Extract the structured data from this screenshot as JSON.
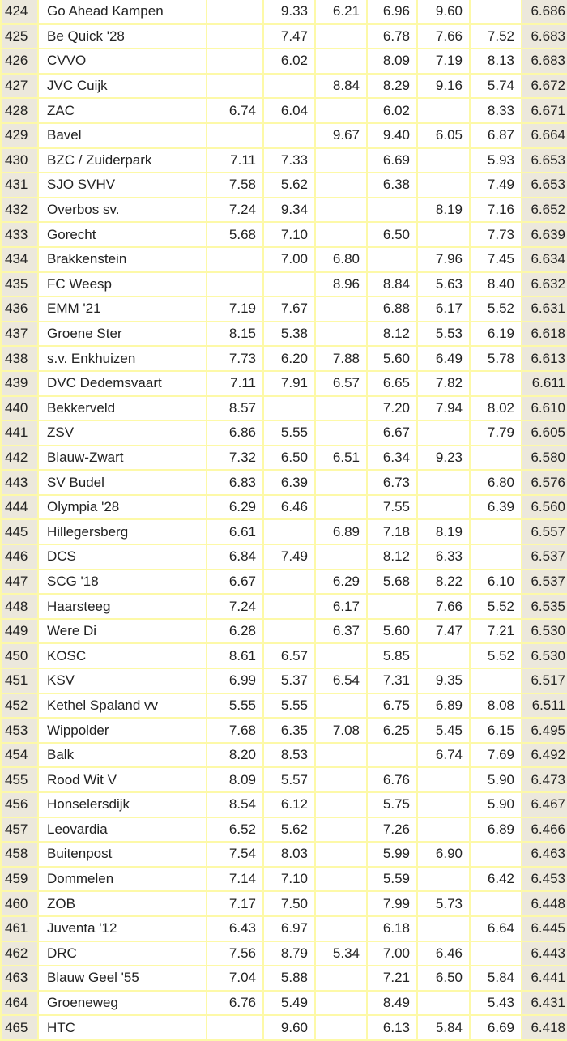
{
  "table": {
    "rows": [
      {
        "rank": "424",
        "club": "Go Ahead Kampen",
        "scores": [
          "",
          "9.33",
          "6.21",
          "6.96",
          "9.60",
          ""
        ],
        "total": "6.686"
      },
      {
        "rank": "425",
        "club": "Be Quick '28",
        "scores": [
          "",
          "7.47",
          "",
          "6.78",
          "7.66",
          "7.52"
        ],
        "total": "6.683"
      },
      {
        "rank": "426",
        "club": "CVVO",
        "scores": [
          "",
          "6.02",
          "",
          "8.09",
          "7.19",
          "8.13"
        ],
        "total": "6.683"
      },
      {
        "rank": "427",
        "club": "JVC Cuijk",
        "scores": [
          "",
          "",
          "8.84",
          "8.29",
          "9.16",
          "5.74"
        ],
        "total": "6.672"
      },
      {
        "rank": "428",
        "club": "ZAC",
        "scores": [
          "6.74",
          "6.04",
          "",
          "6.02",
          "",
          "8.33"
        ],
        "total": "6.671"
      },
      {
        "rank": "429",
        "club": "Bavel",
        "scores": [
          "",
          "",
          "9.67",
          "9.40",
          "6.05",
          "6.87"
        ],
        "total": "6.664"
      },
      {
        "rank": "430",
        "club": "BZC / Zuiderpark",
        "scores": [
          "7.11",
          "7.33",
          "",
          "6.69",
          "",
          "5.93"
        ],
        "total": "6.653"
      },
      {
        "rank": "431",
        "club": "SJO SVHV",
        "scores": [
          "7.58",
          "5.62",
          "",
          "6.38",
          "",
          "7.49"
        ],
        "total": "6.653"
      },
      {
        "rank": "432",
        "club": "Overbos sv.",
        "scores": [
          "7.24",
          "9.34",
          "",
          "",
          "8.19",
          "7.16"
        ],
        "total": "6.652"
      },
      {
        "rank": "433",
        "club": "Gorecht",
        "scores": [
          "5.68",
          "7.10",
          "",
          "6.50",
          "",
          "7.73"
        ],
        "total": "6.639"
      },
      {
        "rank": "434",
        "club": "Brakkenstein",
        "scores": [
          "",
          "7.00",
          "6.80",
          "",
          "7.96",
          "7.45"
        ],
        "total": "6.634"
      },
      {
        "rank": "435",
        "club": "FC Weesp",
        "scores": [
          "",
          "",
          "8.96",
          "8.84",
          "5.63",
          "8.40"
        ],
        "total": "6.632"
      },
      {
        "rank": "436",
        "club": "EMM '21",
        "scores": [
          "7.19",
          "7.67",
          "",
          "6.88",
          "6.17",
          "5.52"
        ],
        "total": "6.631"
      },
      {
        "rank": "437",
        "club": "Groene Ster",
        "scores": [
          "8.15",
          "5.38",
          "",
          "8.12",
          "5.53",
          "6.19"
        ],
        "total": "6.618"
      },
      {
        "rank": "438",
        "club": "s.v. Enkhuizen",
        "scores": [
          "7.73",
          "6.20",
          "7.88",
          "5.60",
          "6.49",
          "5.78"
        ],
        "total": "6.613"
      },
      {
        "rank": "439",
        "club": "DVC Dedemsvaart",
        "scores": [
          "7.11",
          "7.91",
          "6.57",
          "6.65",
          "7.82",
          ""
        ],
        "total": "6.611"
      },
      {
        "rank": "440",
        "club": "Bekkerveld",
        "scores": [
          "8.57",
          "",
          "",
          "7.20",
          "7.94",
          "8.02"
        ],
        "total": "6.610"
      },
      {
        "rank": "441",
        "club": "ZSV",
        "scores": [
          "6.86",
          "5.55",
          "",
          "6.67",
          "",
          "7.79"
        ],
        "total": "6.605"
      },
      {
        "rank": "442",
        "club": "Blauw-Zwart",
        "scores": [
          "7.32",
          "6.50",
          "6.51",
          "6.34",
          "9.23",
          ""
        ],
        "total": "6.580"
      },
      {
        "rank": "443",
        "club": "SV Budel",
        "scores": [
          "6.83",
          "6.39",
          "",
          "6.73",
          "",
          "6.80"
        ],
        "total": "6.576"
      },
      {
        "rank": "444",
        "club": "Olympia '28",
        "scores": [
          "6.29",
          "6.46",
          "",
          "7.55",
          "",
          "6.39"
        ],
        "total": "6.560"
      },
      {
        "rank": "445",
        "club": "Hillegersberg",
        "scores": [
          "6.61",
          "",
          "6.89",
          "7.18",
          "8.19",
          ""
        ],
        "total": "6.557"
      },
      {
        "rank": "446",
        "club": "DCS",
        "scores": [
          "6.84",
          "7.49",
          "",
          "8.12",
          "6.33",
          ""
        ],
        "total": "6.537"
      },
      {
        "rank": "447",
        "club": "SCG '18",
        "scores": [
          "6.67",
          "",
          "6.29",
          "5.68",
          "8.22",
          "6.10"
        ],
        "total": "6.537"
      },
      {
        "rank": "448",
        "club": "Haarsteeg",
        "scores": [
          "7.24",
          "",
          "6.17",
          "",
          "7.66",
          "5.52"
        ],
        "total": "6.535"
      },
      {
        "rank": "449",
        "club": "Were Di",
        "scores": [
          "6.28",
          "",
          "6.37",
          "5.60",
          "7.47",
          "7.21"
        ],
        "total": "6.530"
      },
      {
        "rank": "450",
        "club": "KOSC",
        "scores": [
          "8.61",
          "6.57",
          "",
          "5.85",
          "",
          "5.52"
        ],
        "total": "6.530"
      },
      {
        "rank": "451",
        "club": "KSV",
        "scores": [
          "6.99",
          "5.37",
          "6.54",
          "7.31",
          "9.35",
          ""
        ],
        "total": "6.517"
      },
      {
        "rank": "452",
        "club": "Kethel Spaland vv",
        "scores": [
          "5.55",
          "5.55",
          "",
          "6.75",
          "6.89",
          "8.08"
        ],
        "total": "6.511"
      },
      {
        "rank": "453",
        "club": "Wippolder",
        "scores": [
          "7.68",
          "6.35",
          "7.08",
          "6.25",
          "5.45",
          "6.15"
        ],
        "total": "6.495"
      },
      {
        "rank": "454",
        "club": "Balk",
        "scores": [
          "8.20",
          "8.53",
          "",
          "",
          "6.74",
          "7.69"
        ],
        "total": "6.492"
      },
      {
        "rank": "455",
        "club": "Rood Wit V",
        "scores": [
          "8.09",
          "5.57",
          "",
          "6.76",
          "",
          "5.90"
        ],
        "total": "6.473"
      },
      {
        "rank": "456",
        "club": "Honselersdijk",
        "scores": [
          "8.54",
          "6.12",
          "",
          "5.75",
          "",
          "5.90"
        ],
        "total": "6.467"
      },
      {
        "rank": "457",
        "club": "Leovardia",
        "scores": [
          "6.52",
          "5.62",
          "",
          "7.26",
          "",
          "6.89"
        ],
        "total": "6.466"
      },
      {
        "rank": "458",
        "club": "Buitenpost",
        "scores": [
          "7.54",
          "8.03",
          "",
          "5.99",
          "6.90",
          ""
        ],
        "total": "6.463"
      },
      {
        "rank": "459",
        "club": "Dommelen",
        "scores": [
          "7.14",
          "7.10",
          "",
          "5.59",
          "",
          "6.42"
        ],
        "total": "6.453"
      },
      {
        "rank": "460",
        "club": "ZOB",
        "scores": [
          "7.17",
          "7.50",
          "",
          "7.99",
          "5.73",
          ""
        ],
        "total": "6.448"
      },
      {
        "rank": "461",
        "club": "Juventa '12",
        "scores": [
          "6.43",
          "6.97",
          "",
          "6.18",
          "",
          "6.64"
        ],
        "total": "6.445"
      },
      {
        "rank": "462",
        "club": "DRC",
        "scores": [
          "7.56",
          "8.79",
          "5.34",
          "7.00",
          "6.46",
          ""
        ],
        "total": "6.443"
      },
      {
        "rank": "463",
        "club": "Blauw Geel '55",
        "scores": [
          "7.04",
          "5.88",
          "",
          "7.21",
          "6.50",
          "5.84"
        ],
        "total": "6.441"
      },
      {
        "rank": "464",
        "club": "Groeneweg",
        "scores": [
          "6.76",
          "5.49",
          "",
          "8.49",
          "",
          "5.43"
        ],
        "total": "6.431"
      },
      {
        "rank": "465",
        "club": "HTC",
        "scores": [
          "",
          "9.60",
          "",
          "6.13",
          "5.84",
          "6.69"
        ],
        "total": "6.418"
      }
    ]
  },
  "colors": {
    "grid": "#fdf9a8",
    "shaded_cell": "#ece8dc",
    "cell": "#ffffff",
    "text": "#222222"
  }
}
